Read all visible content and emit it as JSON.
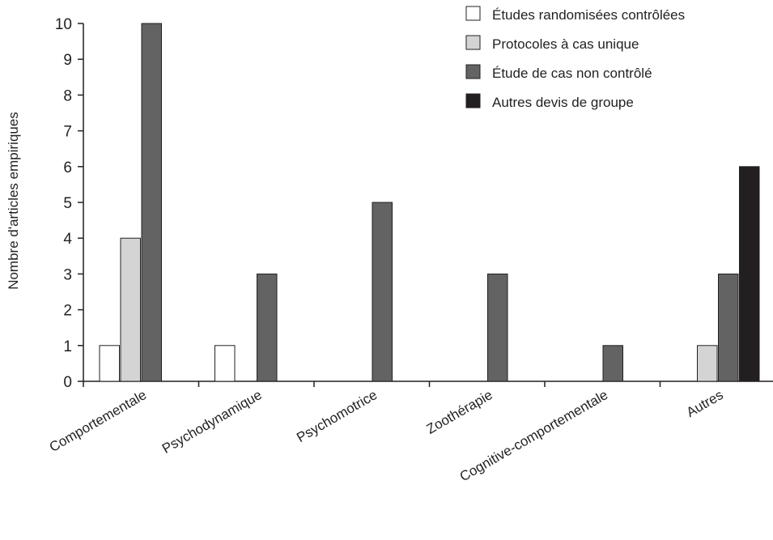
{
  "chart_data": {
    "type": "bar",
    "title": "",
    "xlabel": "",
    "ylabel": "Nombre d'articles empiriques",
    "ylim": [
      0,
      10
    ],
    "yticks": [
      "0",
      "1",
      "2",
      "3",
      "4",
      "5",
      "6",
      "7",
      "8",
      "9",
      "10"
    ],
    "grid": false,
    "legend_position": "top-right",
    "categories": [
      "Comportementale",
      "Psychodynamique",
      "Psychomotrice",
      "Zoothérapie",
      "Cognitive-comportementale",
      "Autres"
    ],
    "series": [
      {
        "name": "Études randomisées contrôlées",
        "color": "#ffffff",
        "values": [
          1,
          1,
          0,
          0,
          0,
          0
        ]
      },
      {
        "name": "Protocoles à cas unique",
        "color": "#d4d4d4",
        "values": [
          4,
          0,
          0,
          0,
          0,
          1
        ]
      },
      {
        "name": "Étude de cas non contrôlé",
        "color": "#636363",
        "values": [
          10,
          3,
          5,
          3,
          1,
          3
        ]
      },
      {
        "name": "Autres devis de groupe",
        "color": "#231f20",
        "values": [
          0,
          0,
          0,
          0,
          0,
          6
        ]
      }
    ]
  }
}
